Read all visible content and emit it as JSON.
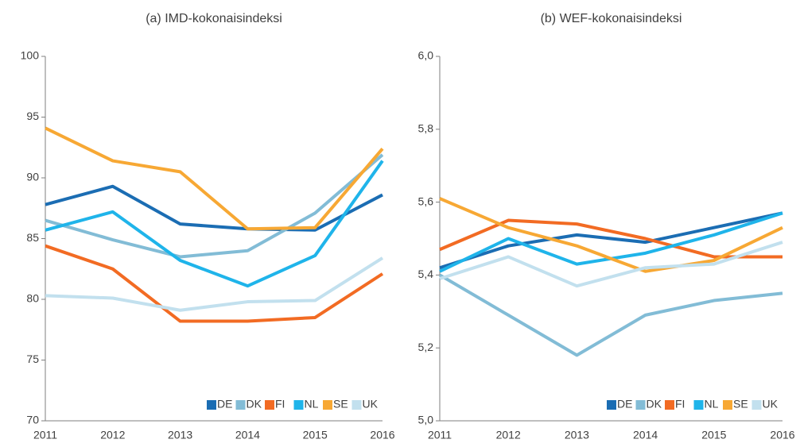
{
  "chart_data": [
    {
      "type": "line",
      "title": "(a) IMD-kokonaisindeksi",
      "categories": [
        "2011",
        "2012",
        "2013",
        "2014",
        "2015",
        "2016"
      ],
      "ylim": [
        70,
        100
      ],
      "yticks": [
        70,
        75,
        80,
        85,
        90,
        95,
        100
      ],
      "legend": "lower right",
      "series": [
        {
          "name": "DE",
          "color": "#1b6db3",
          "values": [
            87.8,
            89.3,
            86.2,
            85.8,
            85.7,
            88.6
          ]
        },
        {
          "name": "DK",
          "color": "#82bcd6",
          "values": [
            86.5,
            84.9,
            83.5,
            84.0,
            87.1,
            91.9
          ]
        },
        {
          "name": "FI",
          "color": "#f26b23",
          "values": [
            84.4,
            82.5,
            78.2,
            78.2,
            78.5,
            82.1
          ]
        },
        {
          "name": "NL",
          "color": "#1fb4ea",
          "values": [
            85.7,
            87.2,
            83.2,
            81.1,
            83.6,
            91.4
          ]
        },
        {
          "name": "SE",
          "color": "#f7a834",
          "values": [
            94.1,
            91.4,
            90.5,
            85.8,
            85.9,
            92.4
          ]
        },
        {
          "name": "UK",
          "color": "#c2e0ee",
          "values": [
            80.3,
            80.1,
            79.1,
            79.8,
            79.9,
            83.4
          ]
        }
      ]
    },
    {
      "type": "line",
      "title": "(b) WEF-kokonaisindeksi",
      "categories": [
        "2011",
        "2012",
        "2013",
        "2014",
        "2015",
        "2016"
      ],
      "ylim": [
        5.0,
        6.0
      ],
      "yticks": [
        {
          "value": 5.0,
          "label": "5,0"
        },
        {
          "value": 5.2,
          "label": "5,2"
        },
        {
          "value": 5.4,
          "label": "5,4"
        },
        {
          "value": 5.6,
          "label": "5,6"
        },
        {
          "value": 5.8,
          "label": "5,8"
        },
        {
          "value": 6.0,
          "label": "6,0"
        }
      ],
      "legend": "lower right",
      "series": [
        {
          "name": "DE",
          "color": "#1b6db3",
          "values": [
            5.42,
            5.48,
            5.51,
            5.49,
            5.53,
            5.57
          ]
        },
        {
          "name": "DK",
          "color": "#82bcd6",
          "values": [
            5.4,
            5.29,
            5.18,
            5.29,
            5.33,
            5.35
          ]
        },
        {
          "name": "FI",
          "color": "#f26b23",
          "values": [
            5.47,
            5.55,
            5.54,
            5.5,
            5.45,
            5.45
          ]
        },
        {
          "name": "NL",
          "color": "#1fb4ea",
          "values": [
            5.41,
            5.5,
            5.43,
            5.46,
            5.51,
            5.57
          ]
        },
        {
          "name": "SE",
          "color": "#f7a834",
          "values": [
            5.61,
            5.53,
            5.48,
            5.41,
            5.44,
            5.53
          ]
        },
        {
          "name": "UK",
          "color": "#c2e0ee",
          "values": [
            5.39,
            5.45,
            5.37,
            5.42,
            5.43,
            5.49
          ]
        }
      ]
    }
  ]
}
